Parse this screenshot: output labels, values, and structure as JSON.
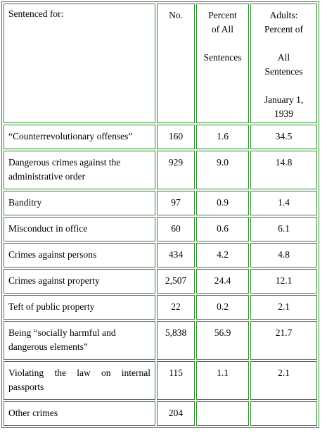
{
  "table": {
    "header": {
      "col1": "Sentenced for:",
      "col2": "No.",
      "col3_lines": [
        "Percent",
        "of All",
        "",
        "Sentences"
      ],
      "col4_lines": [
        "Adults:",
        "Percent of",
        "",
        "All",
        "Sentences",
        "",
        "January 1,",
        "1939"
      ]
    },
    "rows": [
      {
        "label": "“Counterrevolutionary offenses”",
        "no": "160",
        "pct_all": "1.6",
        "adults_pct": "34.5"
      },
      {
        "label": "Dangerous crimes against the administrative order",
        "no": "929",
        "pct_all": "9.0",
        "adults_pct": "14.8"
      },
      {
        "label": "Banditry",
        "no": "97",
        "pct_all": "0.9",
        "adults_pct": "1.4"
      },
      {
        "label": "Misconduct in office",
        "no": "60",
        "pct_all": "0.6",
        "adults_pct": "6.1"
      },
      {
        "label": "Crimes against persons",
        "no": "434",
        "pct_all": "4.2",
        "adults_pct": "4.8"
      },
      {
        "label": "Crimes against property",
        "no": "2,507",
        "pct_all": "24.4",
        "adults_pct": "12.1"
      },
      {
        "label": "Teft of public property",
        "no": "22",
        "pct_all": "0.2",
        "adults_pct": "2.1"
      },
      {
        "label": "Being “socially harmful and dangerous elements”",
        "no": "5,838",
        "pct_all": "56.9",
        "adults_pct": "21.7"
      },
      {
        "label": "Violating the law on internal passports",
        "no": "115",
        "pct_all": "1.1",
        "adults_pct": "2.1"
      },
      {
        "label": "Other crimes",
        "no": "204",
        "pct_all": "",
        "adults_pct": ""
      }
    ]
  },
  "colors": {
    "border": "#2e8b2e",
    "text": "#000000",
    "background": "#ffffff"
  }
}
